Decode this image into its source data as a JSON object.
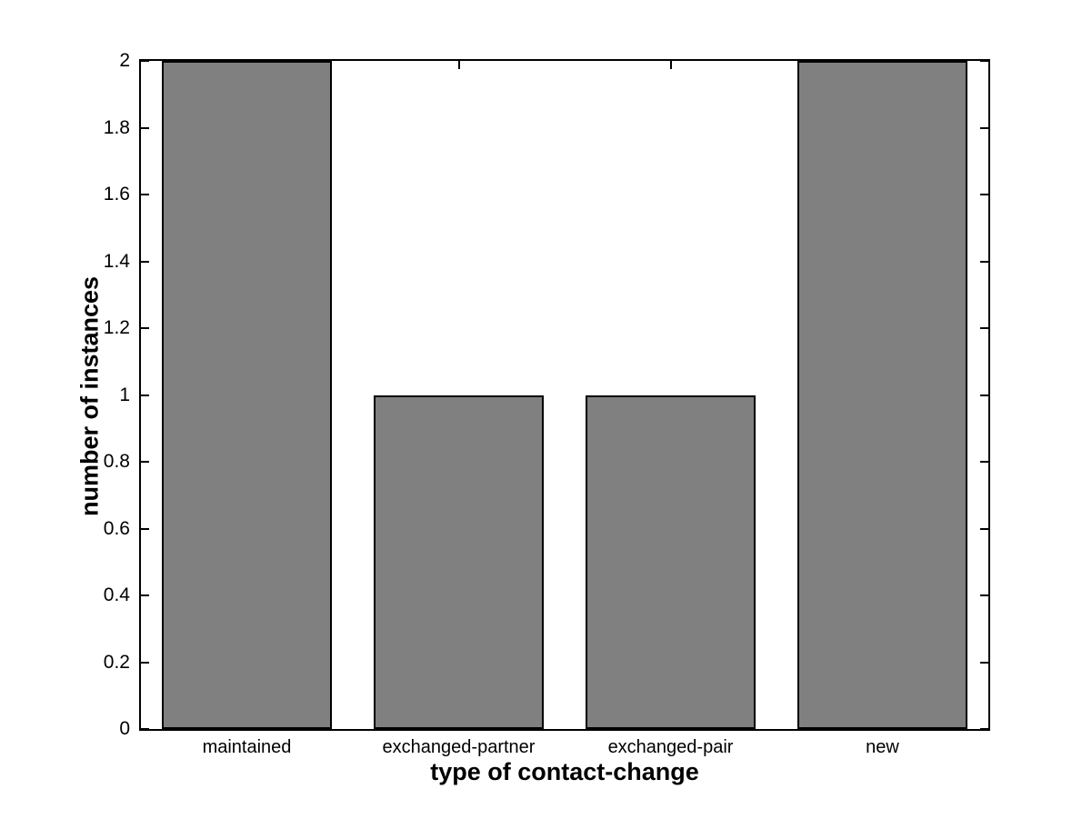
{
  "chart_data": {
    "type": "bar",
    "title": "",
    "categories": [
      "maintained",
      "exchanged-partner",
      "exchanged-pair",
      "new"
    ],
    "values": [
      2,
      1,
      1,
      2
    ],
    "xlabel": "type of contact-change",
    "ylabel": "number of instances",
    "ylim": [
      0,
      2
    ],
    "yticks": [
      0,
      0.2,
      0.4,
      0.6,
      0.8,
      1,
      1.2,
      1.4,
      1.6,
      1.8,
      2
    ],
    "ytick_labels": [
      "0",
      "0.2",
      "0.4",
      "0.6",
      "0.8",
      "1",
      "1.2",
      "1.4",
      "1.6",
      "1.8",
      "2"
    ],
    "bar_width_fraction": 0.8,
    "grid": false,
    "legend_position": "none",
    "colors": {
      "bar_fill": "#808080",
      "bar_edge": "#000000",
      "axis": "#000000",
      "background": "#ffffff",
      "text": "#000000"
    }
  }
}
